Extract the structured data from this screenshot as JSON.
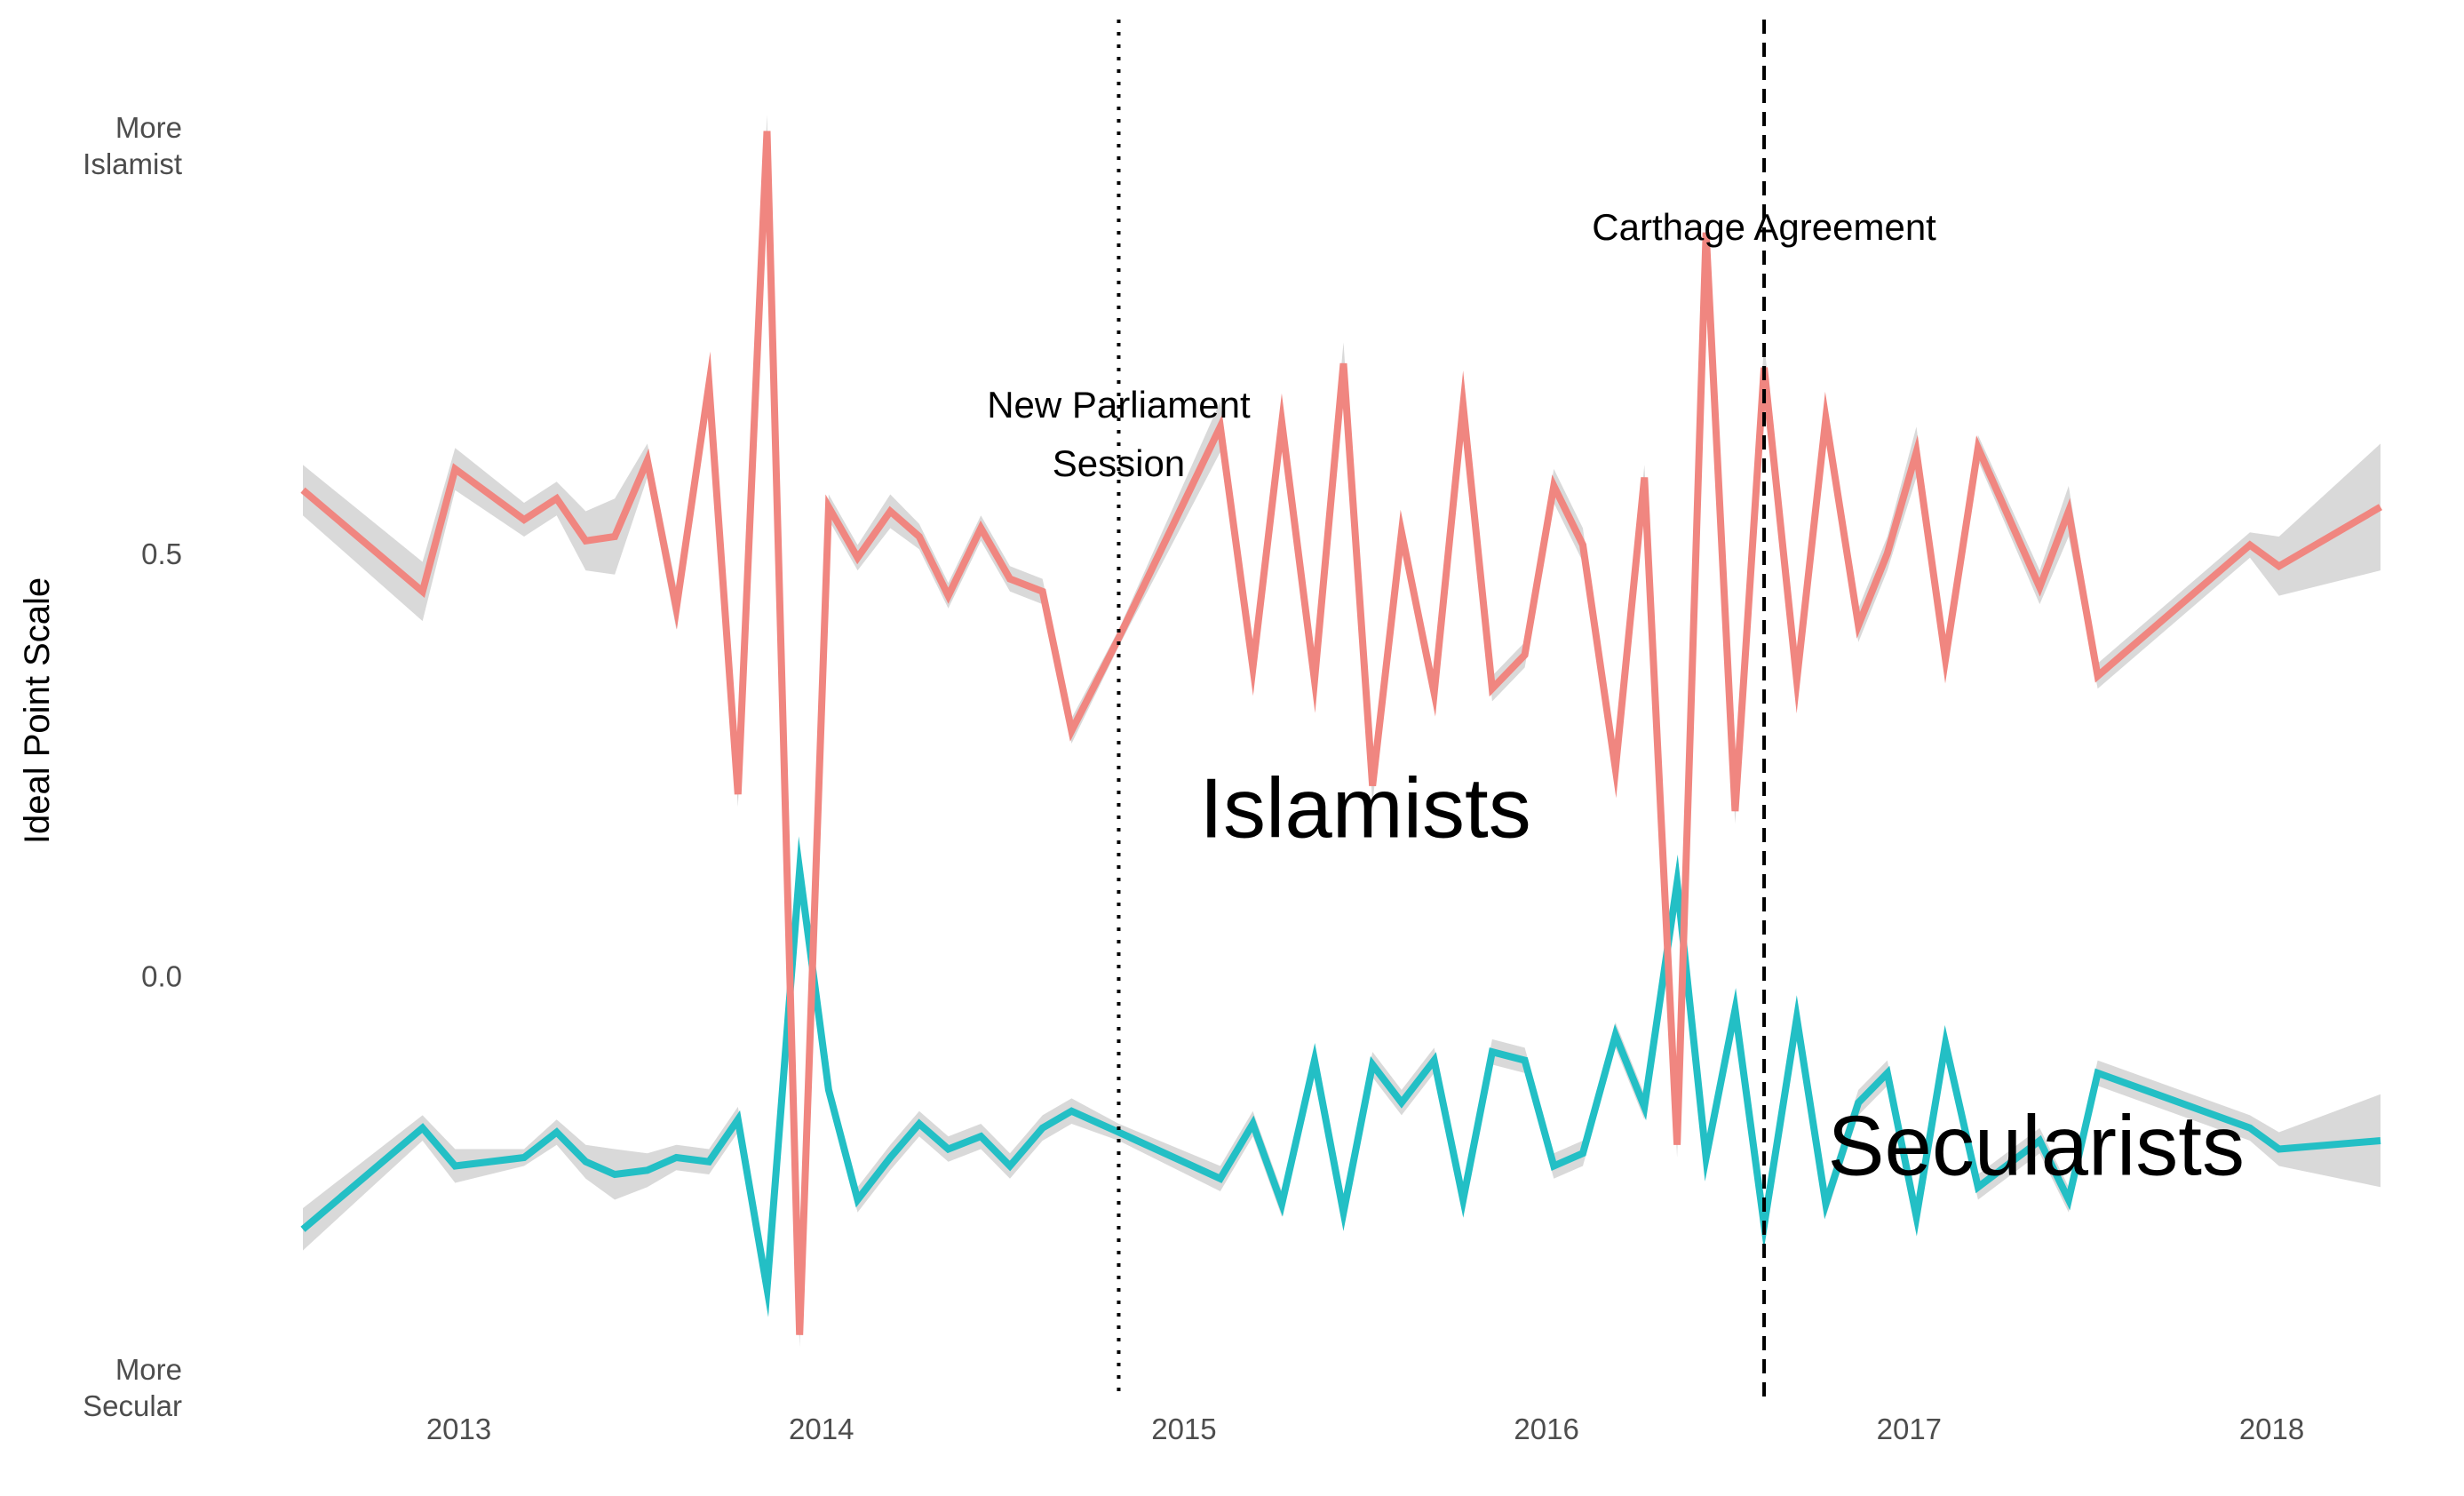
{
  "chart_data": {
    "type": "line",
    "title": "",
    "xlabel": "",
    "ylabel": "Ideal Point Scale",
    "xlim": [
      2012.57,
      2018.3
    ],
    "ylim": [
      -0.48,
      1.05
    ],
    "x_ticks": [
      {
        "value": 2013,
        "label": "2013"
      },
      {
        "value": 2014,
        "label": "2014"
      },
      {
        "value": 2015,
        "label": "2015"
      },
      {
        "value": 2016,
        "label": "2016"
      },
      {
        "value": 2017,
        "label": "2017"
      },
      {
        "value": 2018,
        "label": "2018"
      }
    ],
    "y_ticks": [
      {
        "value": 0.5,
        "label": "0.5"
      },
      {
        "value": 0.0,
        "label": "0.0"
      }
    ],
    "y_end_labels": {
      "top": [
        "More",
        "Islamist"
      ],
      "bottom": [
        "More",
        "Secular"
      ]
    },
    "grid": false,
    "legend": "none",
    "band_color": "#d9d9d9",
    "series": [
      {
        "name": "Islamists",
        "color": "#F08680",
        "points": [
          [
            2012.57,
            0.575,
            0.03
          ],
          [
            2012.9,
            0.455,
            0.035
          ],
          [
            2012.99,
            0.6,
            0.025
          ],
          [
            2013.18,
            0.54,
            0.02
          ],
          [
            2013.27,
            0.565,
            0.02
          ],
          [
            2013.35,
            0.515,
            0.035
          ],
          [
            2013.43,
            0.52,
            0.045
          ],
          [
            2013.52,
            0.61,
            0.02
          ],
          [
            2013.6,
            0.435,
            0.025
          ],
          [
            2013.69,
            0.7,
            0.02
          ],
          [
            2013.77,
            0.215,
            0.015
          ],
          [
            2013.85,
            1.0,
            0.02
          ],
          [
            2013.94,
            -0.425,
            0.015
          ],
          [
            2014.02,
            0.555,
            0.015
          ],
          [
            2014.1,
            0.495,
            0.015
          ],
          [
            2014.19,
            0.55,
            0.02
          ],
          [
            2014.27,
            0.52,
            0.015
          ],
          [
            2014.35,
            0.45,
            0.015
          ],
          [
            2014.44,
            0.53,
            0.015
          ],
          [
            2014.52,
            0.47,
            0.015
          ],
          [
            2014.61,
            0.455,
            0.015
          ],
          [
            2014.69,
            0.29,
            0.015
          ],
          [
            2014.82,
            0.4,
            0.01
          ],
          [
            2015.1,
            0.65,
            0.03
          ],
          [
            2015.19,
            0.365,
            0.02
          ],
          [
            2015.27,
            0.655,
            0.02
          ],
          [
            2015.36,
            0.35,
            0.02
          ],
          [
            2015.44,
            0.725,
            0.025
          ],
          [
            2015.52,
            0.225,
            0.02
          ],
          [
            2015.6,
            0.525,
            0.02
          ],
          [
            2015.69,
            0.335,
            0.015
          ],
          [
            2015.77,
            0.675,
            0.02
          ],
          [
            2015.85,
            0.34,
            0.015
          ],
          [
            2015.94,
            0.38,
            0.015
          ],
          [
            2016.02,
            0.58,
            0.02
          ],
          [
            2016.1,
            0.51,
            0.02
          ],
          [
            2016.19,
            0.245,
            0.015
          ],
          [
            2016.27,
            0.59,
            0.015
          ],
          [
            2016.36,
            -0.2,
            0.015
          ],
          [
            2016.44,
            0.88,
            0.015
          ],
          [
            2016.52,
            0.195,
            0.015
          ],
          [
            2016.6,
            0.72,
            0.03
          ],
          [
            2016.69,
            0.35,
            0.015
          ],
          [
            2016.77,
            0.66,
            0.02
          ],
          [
            2016.86,
            0.415,
            0.02
          ],
          [
            2016.94,
            0.5,
            0.02
          ],
          [
            2017.02,
            0.62,
            0.03
          ],
          [
            2017.1,
            0.375,
            0.02
          ],
          [
            2017.19,
            0.625,
            0.015
          ],
          [
            2017.36,
            0.46,
            0.02
          ],
          [
            2017.44,
            0.55,
            0.03
          ],
          [
            2017.52,
            0.355,
            0.015
          ],
          [
            2017.94,
            0.51,
            0.015
          ],
          [
            2018.02,
            0.485,
            0.035
          ],
          [
            2018.3,
            0.555,
            0.075
          ]
        ]
      },
      {
        "name": "Secularists",
        "color": "#23BFC5",
        "points": [
          [
            2012.57,
            -0.3,
            0.025
          ],
          [
            2012.9,
            -0.18,
            0.015
          ],
          [
            2012.99,
            -0.225,
            0.02
          ],
          [
            2013.18,
            -0.215,
            0.01
          ],
          [
            2013.27,
            -0.185,
            0.015
          ],
          [
            2013.35,
            -0.22,
            0.02
          ],
          [
            2013.43,
            -0.235,
            0.03
          ],
          [
            2013.52,
            -0.23,
            0.02
          ],
          [
            2013.6,
            -0.215,
            0.015
          ],
          [
            2013.69,
            -0.22,
            0.015
          ],
          [
            2013.77,
            -0.17,
            0.015
          ],
          [
            2013.85,
            -0.37,
            0.015
          ],
          [
            2013.94,
            0.125,
            0.015
          ],
          [
            2014.02,
            -0.135,
            0.015
          ],
          [
            2014.1,
            -0.265,
            0.015
          ],
          [
            2014.19,
            -0.215,
            0.015
          ],
          [
            2014.27,
            -0.175,
            0.015
          ],
          [
            2014.35,
            -0.205,
            0.015
          ],
          [
            2014.44,
            -0.19,
            0.015
          ],
          [
            2014.52,
            -0.225,
            0.015
          ],
          [
            2014.61,
            -0.18,
            0.015
          ],
          [
            2014.69,
            -0.16,
            0.015
          ],
          [
            2014.82,
            -0.185,
            0.01
          ],
          [
            2015.1,
            -0.24,
            0.015
          ],
          [
            2015.19,
            -0.175,
            0.015
          ],
          [
            2015.27,
            -0.27,
            0.015
          ],
          [
            2015.36,
            -0.1,
            0.015
          ],
          [
            2015.44,
            -0.28,
            0.02
          ],
          [
            2015.52,
            -0.105,
            0.015
          ],
          [
            2015.6,
            -0.15,
            0.015
          ],
          [
            2015.69,
            -0.1,
            0.015
          ],
          [
            2015.77,
            -0.265,
            0.015
          ],
          [
            2015.85,
            -0.09,
            0.015
          ],
          [
            2015.94,
            -0.1,
            0.015
          ],
          [
            2016.02,
            -0.225,
            0.015
          ],
          [
            2016.1,
            -0.21,
            0.015
          ],
          [
            2016.19,
            -0.07,
            0.015
          ],
          [
            2016.27,
            -0.155,
            0.015
          ],
          [
            2016.36,
            0.11,
            0.015
          ],
          [
            2016.44,
            -0.215,
            0.015
          ],
          [
            2016.52,
            -0.04,
            0.015
          ],
          [
            2016.6,
            -0.295,
            0.015
          ],
          [
            2016.69,
            -0.05,
            0.015
          ],
          [
            2016.77,
            -0.27,
            0.015
          ],
          [
            2016.86,
            -0.15,
            0.015
          ],
          [
            2016.94,
            -0.115,
            0.015
          ],
          [
            2017.02,
            -0.285,
            0.015
          ],
          [
            2017.1,
            -0.08,
            0.015
          ],
          [
            2017.19,
            -0.25,
            0.015
          ],
          [
            2017.36,
            -0.195,
            0.015
          ],
          [
            2017.44,
            -0.265,
            0.015
          ],
          [
            2017.52,
            -0.115,
            0.015
          ],
          [
            2017.94,
            -0.18,
            0.015
          ],
          [
            2018.02,
            -0.205,
            0.02
          ],
          [
            2018.3,
            -0.195,
            0.055
          ]
        ]
      }
    ],
    "vertical_lines": [
      {
        "x": 2014.82,
        "style": "dotted",
        "label": [
          "New Parliament",
          "Session"
        ]
      },
      {
        "x": 2016.6,
        "style": "dashed",
        "label": [
          "Carthage Agreement"
        ]
      }
    ],
    "annotations": [
      {
        "text": "Islamists",
        "x": 2015.5,
        "y": 0.2
      },
      {
        "text": "Secularists",
        "x": 2017.35,
        "y": -0.2
      }
    ]
  }
}
